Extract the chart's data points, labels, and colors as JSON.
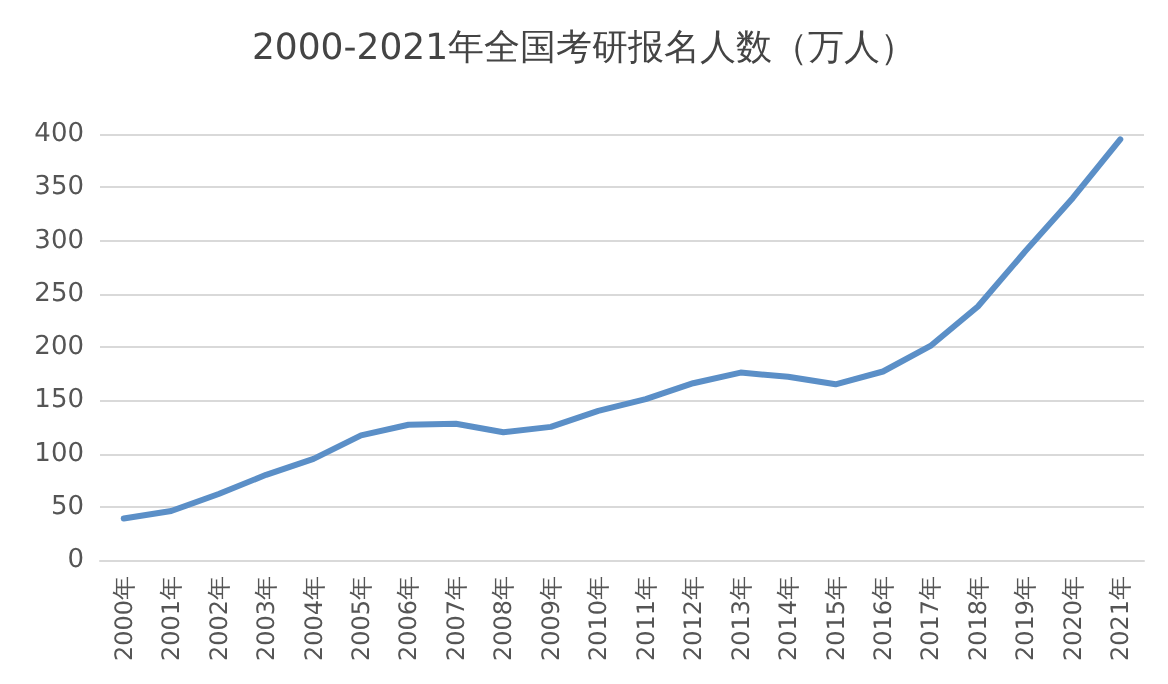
{
  "chart_data": {
    "type": "line",
    "title": "2000-2021年全国考研报名人数（万人）",
    "categories": [
      "2000年",
      "2001年",
      "2002年",
      "2003年",
      "2004年",
      "2005年",
      "2006年",
      "2007年",
      "2008年",
      "2009年",
      "2010年",
      "2011年",
      "2012年",
      "2013年",
      "2014年",
      "2015年",
      "2016年",
      "2017年",
      "2018年",
      "2019年",
      "2020年",
      "2021年"
    ],
    "series": [
      {
        "color": "#5b8fc7",
        "values": [
          39,
          46,
          62,
          80,
          95,
          117,
          127,
          128,
          120,
          125,
          140,
          151,
          166,
          176,
          172,
          165,
          177,
          201,
          238,
          290,
          340,
          395
        ]
      }
    ],
    "ylim": [
      0,
      400
    ],
    "yticks": [
      0,
      50,
      100,
      150,
      200,
      250,
      300,
      350,
      400
    ],
    "grid": "y",
    "marker": "none",
    "line_style": "solid"
  }
}
